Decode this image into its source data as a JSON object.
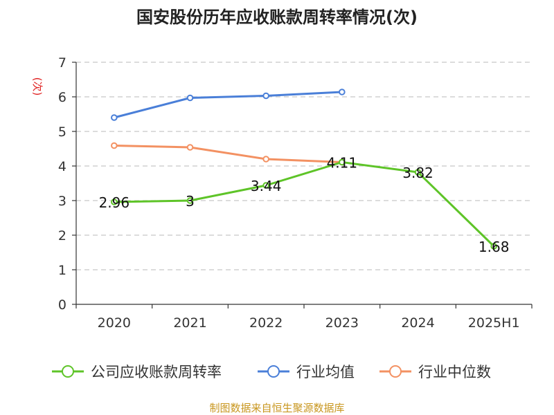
{
  "chart_data": {
    "type": "line",
    "title": "国安股份历年应收账款周转率情况(次)",
    "ylabel": "(次)",
    "xlabel": "",
    "categories": [
      "2020",
      "2021",
      "2022",
      "2023",
      "2024",
      "2025H1"
    ],
    "ylim": [
      0,
      7
    ],
    "yticks": [
      0,
      1,
      2,
      3,
      4,
      5,
      6,
      7
    ],
    "grid": true,
    "legend_position": "bottom",
    "series": [
      {
        "name": "公司应收账款周转率",
        "color": "#5ec428",
        "values": [
          2.96,
          3,
          3.44,
          4.11,
          3.82,
          1.68
        ],
        "show_labels": true
      },
      {
        "name": "行业均值",
        "color": "#4a7fd8",
        "values": [
          5.4,
          5.97,
          6.03,
          6.14,
          null,
          null
        ],
        "show_labels": false
      },
      {
        "name": "行业中位数",
        "color": "#f39162",
        "values": [
          4.59,
          4.54,
          4.2,
          4.11,
          null,
          null
        ],
        "show_labels": false
      }
    ],
    "data_labels": [
      "2.96",
      "3",
      "3.44",
      "4.11",
      "3.82",
      "1.68"
    ]
  },
  "source": "制图数据来自恒生聚源数据库"
}
